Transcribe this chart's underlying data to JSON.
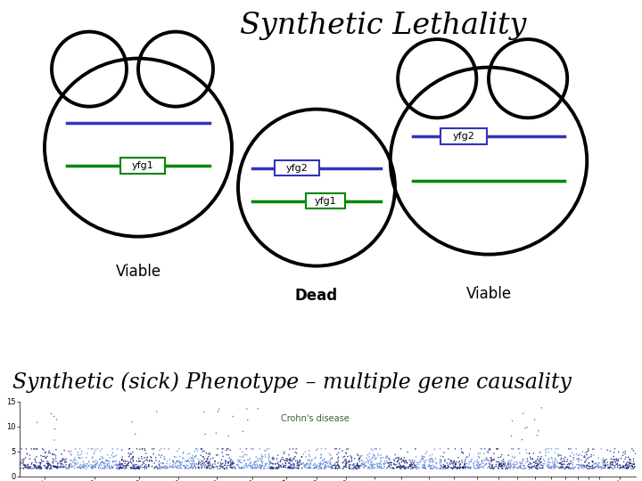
{
  "title": "Synthetic Lethality",
  "subtitle": "Synthetic (sick) Phenotype – multiple gene causality",
  "bg_color": "#ffffff",
  "blue_color": "#3333bb",
  "green_color": "#008800",
  "text_color": "#000000",
  "viable_label": "Viable",
  "dead_label": "Dead",
  "yfg1_label": "yfg1",
  "yfg2_label": "yfg2",
  "dark_blue_manhattan": "#1a237e",
  "light_blue_manhattan": "#5c85d6",
  "green_manhattan": "#00aa00",
  "crohns_label": "Crohn's disease",
  "crohns_color": "#336633"
}
